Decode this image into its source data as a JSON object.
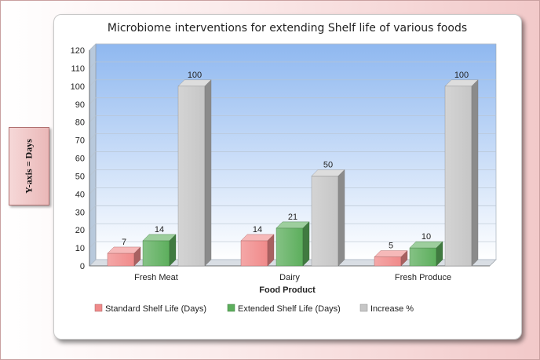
{
  "side_label": "Y-axis = Days",
  "chart_data": {
    "type": "bar",
    "title": "Microbiome interventions for extending Shelf life of various foods",
    "xlabel": "Food Product",
    "ylabel": "",
    "ylim": [
      0,
      120
    ],
    "yticks": [
      0,
      10,
      20,
      30,
      40,
      50,
      60,
      70,
      80,
      90,
      100,
      110,
      120
    ],
    "categories": [
      "Fresh Meat",
      "Dairy",
      "Fresh Produce"
    ],
    "series": [
      {
        "name": "Standard Shelf Life (Days)",
        "values": [
          7,
          14,
          5
        ],
        "color": "#f08a8a"
      },
      {
        "name": "Extended Shelf Life (Days)",
        "values": [
          14,
          21,
          10
        ],
        "color": "#5cae5c"
      },
      {
        "name": "Increase %",
        "values": [
          100,
          50,
          100
        ],
        "color": "#c6c6c6"
      }
    ],
    "grid": true,
    "legend": "bottom"
  }
}
